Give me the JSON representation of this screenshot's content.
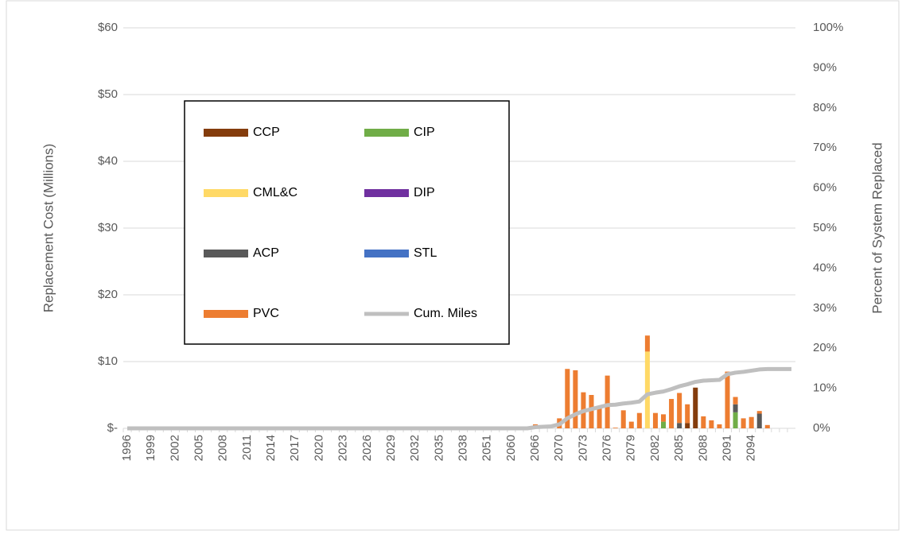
{
  "chart_data": {
    "type": "bar",
    "y_label": "Replacement Cost (Millions)",
    "y2_label": "Percent of System Replaced",
    "categories": [
      "1996",
      null,
      null,
      "1999",
      null,
      null,
      "2002",
      null,
      null,
      "2005",
      null,
      null,
      "2008",
      null,
      null,
      "2011",
      null,
      null,
      "2014",
      null,
      null,
      "2017",
      null,
      null,
      "2020",
      null,
      null,
      "2023",
      null,
      null,
      "2026",
      null,
      null,
      "2029",
      null,
      null,
      "2032",
      null,
      null,
      "2035",
      null,
      null,
      "2038",
      null,
      null,
      "2051",
      null,
      null,
      "2060",
      null,
      null,
      "2066",
      null,
      null,
      "2070",
      null,
      null,
      "2073",
      null,
      null,
      "2076",
      null,
      null,
      "2079",
      null,
      null,
      "2082",
      null,
      null,
      "2085",
      null,
      null,
      "2088",
      null,
      null,
      "2091",
      null,
      null,
      "2094",
      null,
      null,
      null,
      null,
      null
    ],
    "series": [
      {
        "name": "CCP",
        "color": "#843c0c",
        "values": [
          0,
          0,
          0,
          0,
          0,
          0,
          0,
          0,
          0,
          0,
          0,
          0,
          0,
          0,
          0,
          0,
          0,
          0,
          0,
          0,
          0,
          0,
          0,
          0,
          0,
          0,
          0,
          0,
          0,
          0,
          0,
          0,
          0,
          0,
          0,
          0,
          0,
          0,
          0,
          0,
          0,
          0,
          0,
          0,
          0,
          0,
          0,
          0,
          0,
          0,
          0,
          0,
          0,
          0,
          0,
          0,
          0,
          0,
          0,
          0,
          0,
          0,
          0,
          0,
          0,
          0,
          0,
          0,
          0,
          0,
          0.8,
          6.1,
          0,
          0,
          0,
          0,
          0,
          0,
          0,
          0,
          0,
          0,
          0,
          0
        ]
      },
      {
        "name": "CIP",
        "color": "#70ad47",
        "values": [
          0,
          0,
          0,
          0,
          0,
          0,
          0,
          0,
          0,
          0,
          0,
          0,
          0,
          0,
          0,
          0,
          0,
          0,
          0,
          0,
          0,
          0,
          0,
          0,
          0,
          0,
          0,
          0,
          0,
          0,
          0,
          0,
          0,
          0,
          0,
          0,
          0,
          0,
          0,
          0,
          0,
          0,
          0,
          0,
          0,
          0,
          0,
          0,
          0,
          0,
          0,
          0,
          0,
          0,
          0,
          0,
          0,
          0,
          0,
          0,
          0,
          0,
          0,
          0,
          0,
          0,
          0,
          1.0,
          0,
          0,
          0,
          0,
          0,
          0,
          0,
          0,
          2.4,
          0,
          0,
          0,
          0,
          0,
          0,
          0
        ]
      },
      {
        "name": "CML&C",
        "color": "#ffd966",
        "values": [
          0,
          0,
          0,
          0,
          0,
          0,
          0,
          0,
          0,
          0,
          0,
          0,
          0,
          0,
          0,
          0,
          0,
          0,
          0,
          0,
          0,
          0,
          0,
          0,
          0,
          0,
          0,
          0,
          0,
          0,
          0,
          0,
          0,
          0,
          0,
          0,
          0,
          0,
          0,
          0,
          0,
          0,
          0,
          0,
          0,
          0,
          0,
          0,
          0,
          0,
          0,
          0,
          0,
          0,
          0,
          0,
          0,
          0,
          0,
          0,
          0,
          0,
          0,
          0,
          0,
          11.5,
          0,
          0,
          0,
          0,
          0,
          0,
          0,
          0,
          0,
          0,
          0,
          0,
          0,
          0,
          0,
          0,
          0,
          0
        ]
      },
      {
        "name": "DIP",
        "color": "#7030a0",
        "values": [
          0,
          0,
          0,
          0,
          0,
          0,
          0,
          0,
          0,
          0,
          0,
          0,
          0,
          0,
          0,
          0,
          0,
          0,
          0,
          0,
          0,
          0,
          0,
          0,
          0,
          0,
          0,
          0,
          0,
          0,
          0,
          0,
          0,
          0,
          0,
          0,
          0,
          0,
          0,
          0,
          0,
          0,
          0,
          0,
          0,
          0,
          0,
          0,
          0,
          0,
          0,
          0,
          0,
          0,
          0,
          0,
          0,
          0,
          0,
          0,
          0,
          0,
          0,
          0,
          0,
          0,
          0,
          0,
          0,
          0,
          0,
          0,
          0,
          0,
          0,
          0,
          0,
          0,
          0,
          0,
          0,
          0,
          0,
          0
        ]
      },
      {
        "name": "ACP",
        "color": "#595959",
        "values": [
          0,
          0,
          0,
          0,
          0,
          0,
          0,
          0,
          0,
          0,
          0,
          0,
          0,
          0,
          0,
          0,
          0,
          0,
          0,
          0,
          0,
          0,
          0,
          0,
          0,
          0,
          0,
          0,
          0,
          0,
          0,
          0,
          0,
          0,
          0,
          0,
          0,
          0,
          0,
          0,
          0,
          0,
          0,
          0,
          0,
          0,
          0,
          0,
          0,
          0,
          0,
          0,
          0,
          0,
          0,
          0,
          0,
          0,
          0,
          0,
          0,
          0,
          0,
          0,
          0,
          0,
          0,
          0,
          0,
          0.8,
          0,
          0,
          0,
          0,
          0,
          0,
          1.2,
          0,
          0,
          2.2,
          0,
          0,
          0,
          0
        ]
      },
      {
        "name": "STL",
        "color": "#4472c4",
        "values": [
          0,
          0,
          0,
          0,
          0,
          0,
          0,
          0,
          0,
          0,
          0,
          0,
          0,
          0,
          0,
          0,
          0,
          0,
          0,
          0,
          0,
          0,
          0,
          0,
          0,
          0,
          0,
          0,
          0,
          0,
          0,
          0,
          0,
          0,
          0,
          0,
          0,
          0,
          0,
          0,
          0,
          0,
          0,
          0,
          0,
          0,
          0,
          0,
          0,
          0,
          0,
          0,
          0,
          0,
          0,
          0,
          0,
          0,
          0,
          0,
          0,
          0,
          0,
          0,
          0,
          0,
          0,
          0,
          0,
          0,
          0,
          0,
          0,
          0,
          0,
          0,
          0,
          0,
          0,
          0,
          0,
          0,
          0,
          0
        ]
      },
      {
        "name": "PVC",
        "color": "#ed7d31",
        "values": [
          0,
          0,
          0,
          0,
          0,
          0,
          0,
          0,
          0,
          0,
          0,
          0,
          0,
          0,
          0,
          0,
          0,
          0,
          0,
          0,
          0,
          0,
          0,
          0,
          0,
          0,
          0,
          0,
          0,
          0,
          0,
          0,
          0,
          0,
          0,
          0,
          0,
          0,
          0,
          0,
          0,
          0,
          0,
          0,
          0,
          0,
          0,
          0,
          0,
          0,
          0,
          0.6,
          0,
          0,
          1.5,
          8.9,
          8.7,
          5.4,
          5.0,
          3.0,
          7.9,
          0.1,
          2.7,
          1.0,
          2.3,
          2.4,
          2.3,
          1.1,
          4.4,
          4.5,
          2.8,
          0,
          1.8,
          1.2,
          0.6,
          8.5,
          1.1,
          1.5,
          1.7,
          0.4,
          0.5,
          0,
          0,
          0
        ]
      },
      {
        "name": "Cum. Miles",
        "color": "#bfbfbf",
        "type": "line",
        "axis": "y2",
        "values": [
          0,
          0,
          0,
          0,
          0,
          0,
          0,
          0,
          0,
          0,
          0,
          0,
          0,
          0,
          0,
          0,
          0,
          0,
          0,
          0,
          0,
          0,
          0,
          0,
          0,
          0,
          0,
          0,
          0,
          0,
          0,
          0,
          0,
          0,
          0,
          0,
          0,
          0,
          0,
          0,
          0,
          0,
          0,
          0,
          0,
          0,
          0,
          0,
          0,
          0,
          0,
          0.3,
          0.4,
          0.5,
          1.0,
          2.5,
          3.5,
          4.3,
          4.8,
          5.3,
          5.8,
          5.9,
          6.2,
          6.4,
          6.7,
          8.5,
          8.9,
          9.2,
          9.8,
          10.5,
          11.0,
          11.6,
          11.9,
          12.0,
          12.1,
          13.5,
          13.9,
          14.1,
          14.4,
          14.7,
          14.8,
          14.8,
          14.8,
          14.8
        ]
      }
    ],
    "ylim": [
      0,
      60
    ],
    "yticks": [
      {
        "value": 0,
        "label": "$-"
      },
      {
        "value": 10,
        "label": "$10"
      },
      {
        "value": 20,
        "label": "$20"
      },
      {
        "value": 30,
        "label": "$30"
      },
      {
        "value": 40,
        "label": "$40"
      },
      {
        "value": 50,
        "label": "$50"
      },
      {
        "value": 60,
        "label": "$60"
      }
    ],
    "y2lim": [
      0,
      100
    ],
    "y2ticks": [
      {
        "value": 0,
        "label": "0%"
      },
      {
        "value": 10,
        "label": "10%"
      },
      {
        "value": 20,
        "label": "20%"
      },
      {
        "value": 30,
        "label": "30%"
      },
      {
        "value": 40,
        "label": "40%"
      },
      {
        "value": 50,
        "label": "50%"
      },
      {
        "value": 60,
        "label": "60%"
      },
      {
        "value": 70,
        "label": "70%"
      },
      {
        "value": 80,
        "label": "80%"
      },
      {
        "value": 90,
        "label": "90%"
      },
      {
        "value": 100,
        "label": "100%"
      }
    ],
    "grid": true,
    "stacked": true
  }
}
